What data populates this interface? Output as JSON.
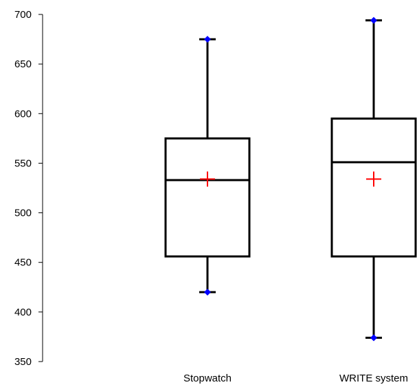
{
  "chart_data": {
    "type": "box",
    "title": "",
    "xlabel": "",
    "ylabel": "",
    "ylim": [
      350,
      700
    ],
    "yticks": [
      350,
      400,
      450,
      500,
      550,
      600,
      650,
      700
    ],
    "grid": false,
    "categories": [
      "Stopwatch",
      "WRITE system"
    ],
    "boxes": [
      {
        "category": "Stopwatch",
        "min": 420,
        "q1": 456,
        "median": 533,
        "q3": 575,
        "max": 675,
        "mean": 534
      },
      {
        "category": "WRITE system",
        "min": 374,
        "q1": 456,
        "median": 551,
        "q3": 595,
        "max": 694,
        "mean": 534
      }
    ],
    "colors": {
      "box": "#000000",
      "mean_marker": "#ff0000",
      "whisker_end_marker": "#0000ff"
    }
  }
}
